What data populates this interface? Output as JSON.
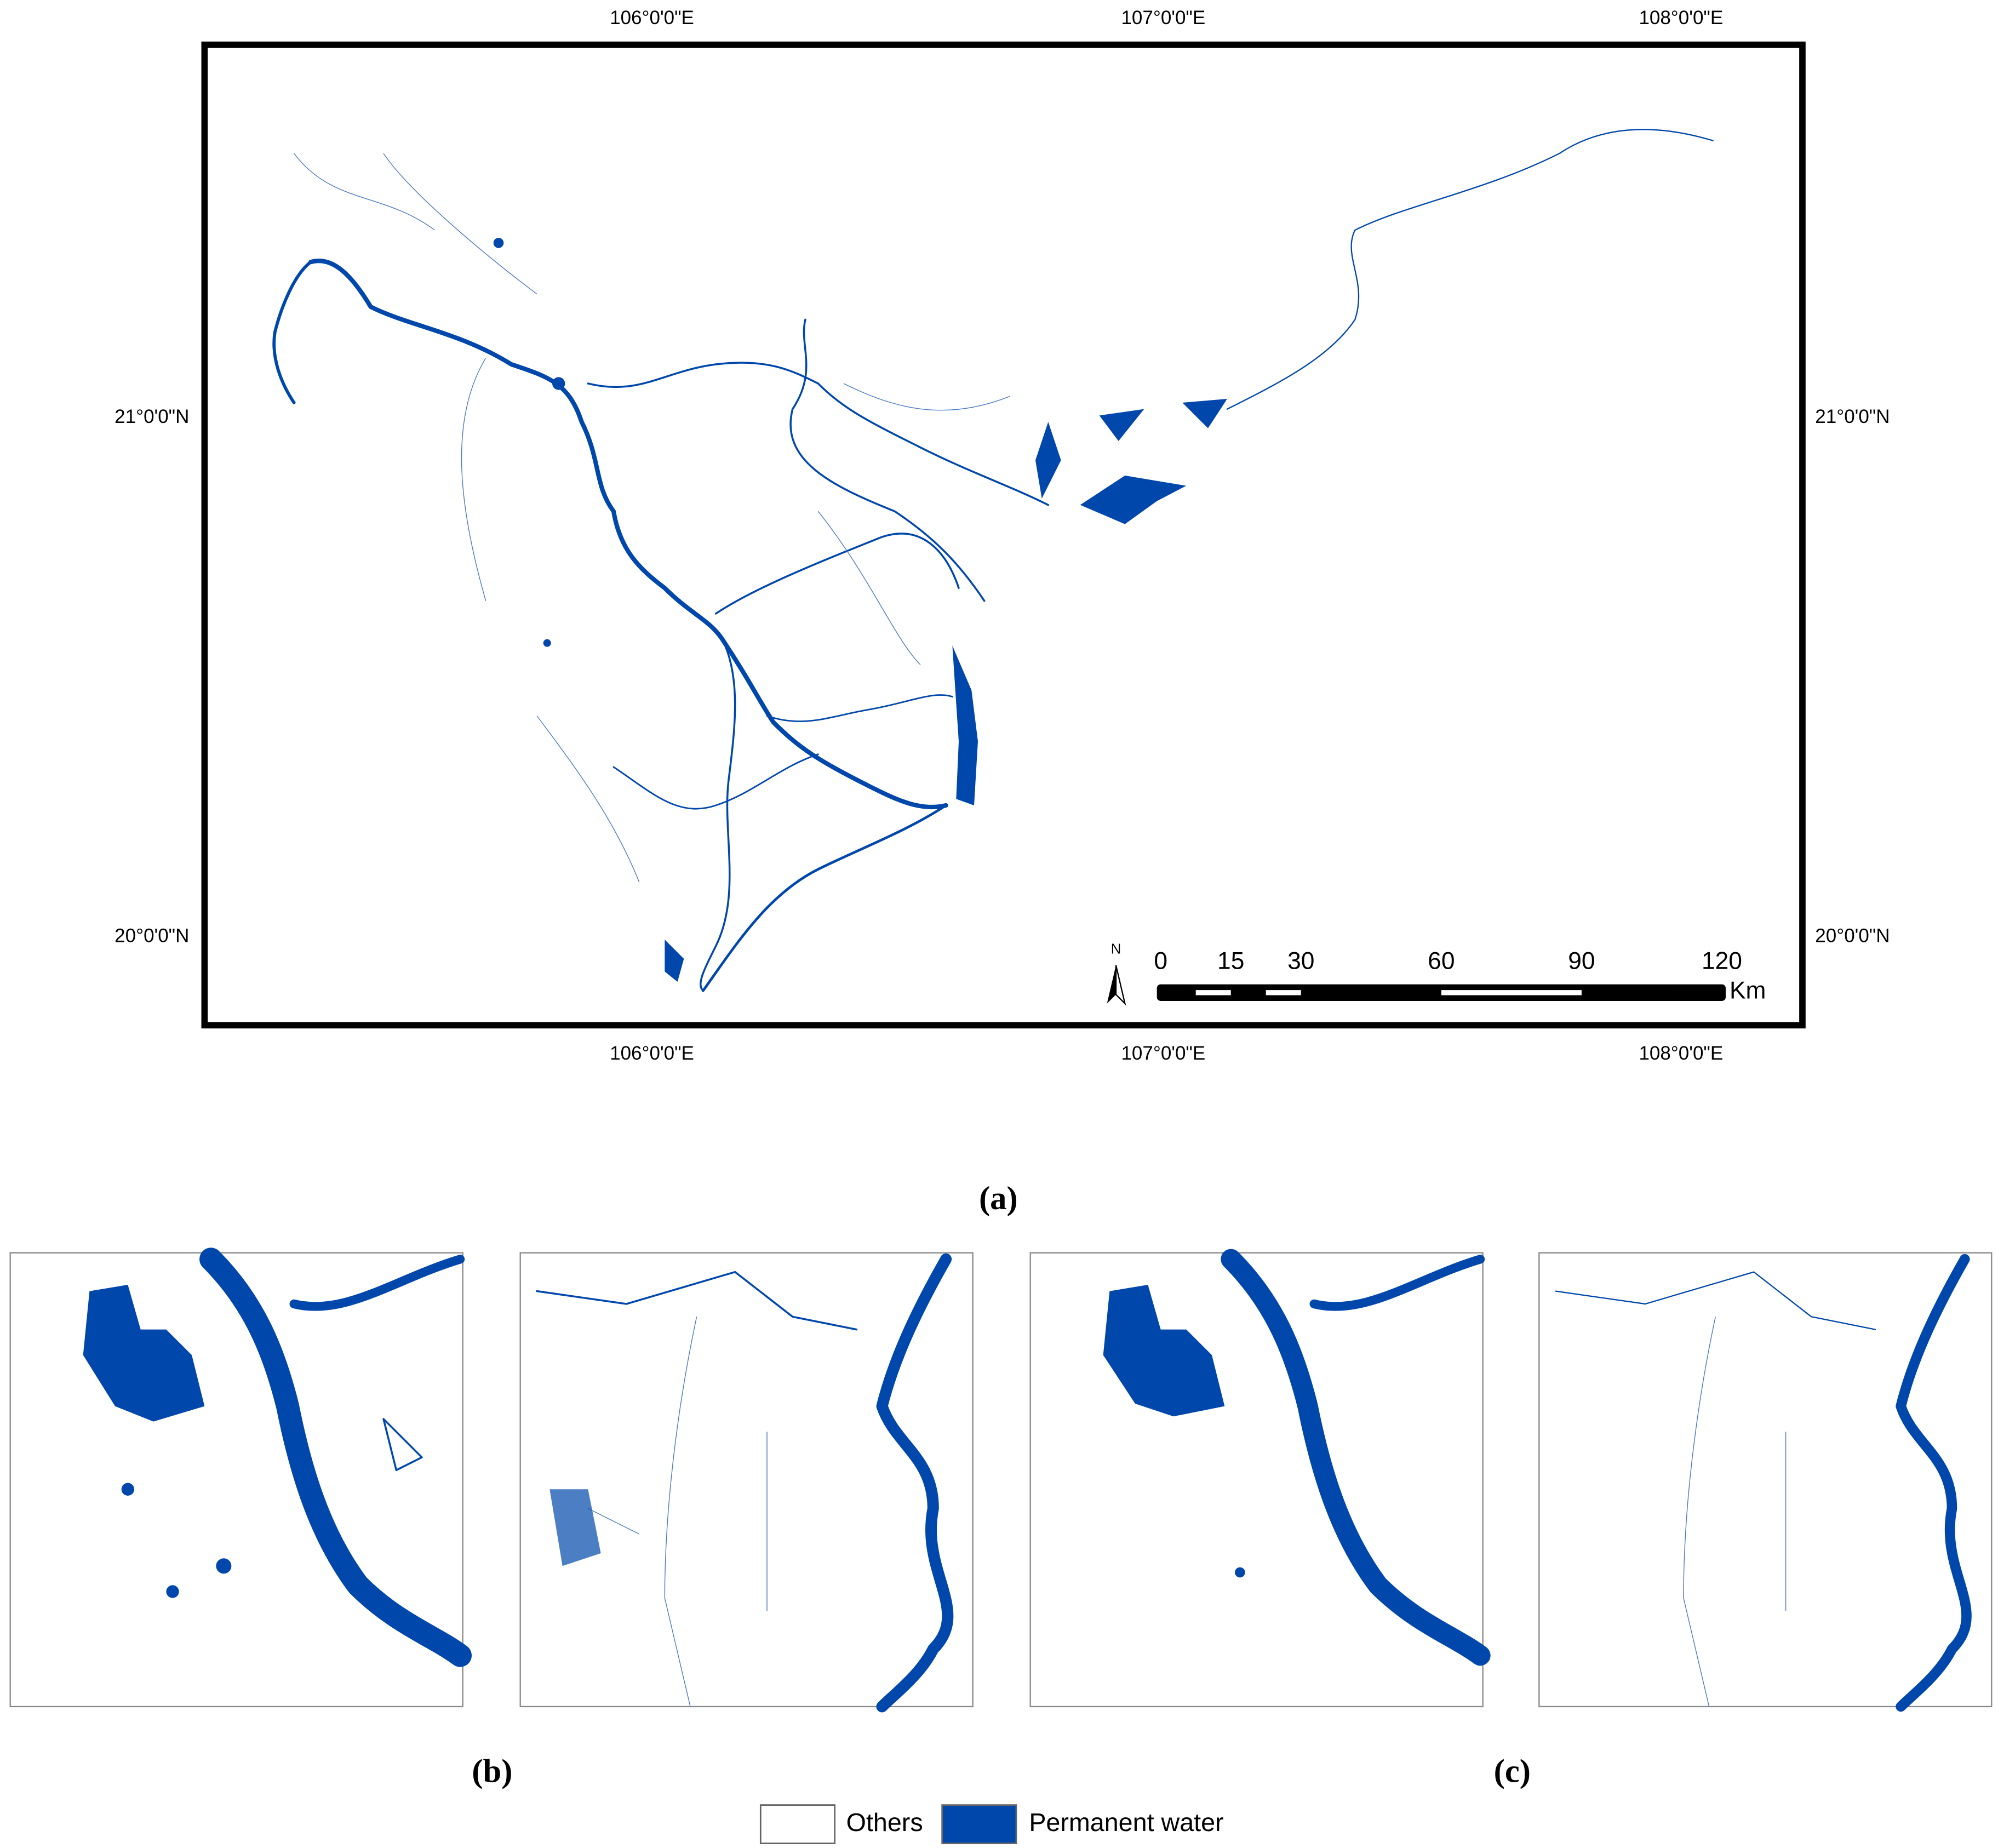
{
  "map": {
    "top_labels": [
      "106°0'0\"E",
      "107°0'0\"E",
      "108°0'0\"E"
    ],
    "bottom_labels": [
      "106°0'0\"E",
      "107°0'0\"E",
      "108°0'0\"E"
    ],
    "left_labels": [
      "21°0'0\"N",
      "20°0'0\"N"
    ],
    "right_labels": [
      "21°0'0\"N",
      "20°0'0\"N"
    ],
    "north": "N",
    "scale_bar": {
      "ticks": [
        0,
        15,
        30,
        60,
        90,
        120
      ],
      "unit": "Km"
    }
  },
  "captions": {
    "a": "(a)",
    "b": "(b)",
    "c": "(c)"
  },
  "legend": [
    {
      "name": "Others",
      "color": "#ffffff"
    },
    {
      "name": "Permanent water",
      "color": "#0047ab"
    }
  ]
}
